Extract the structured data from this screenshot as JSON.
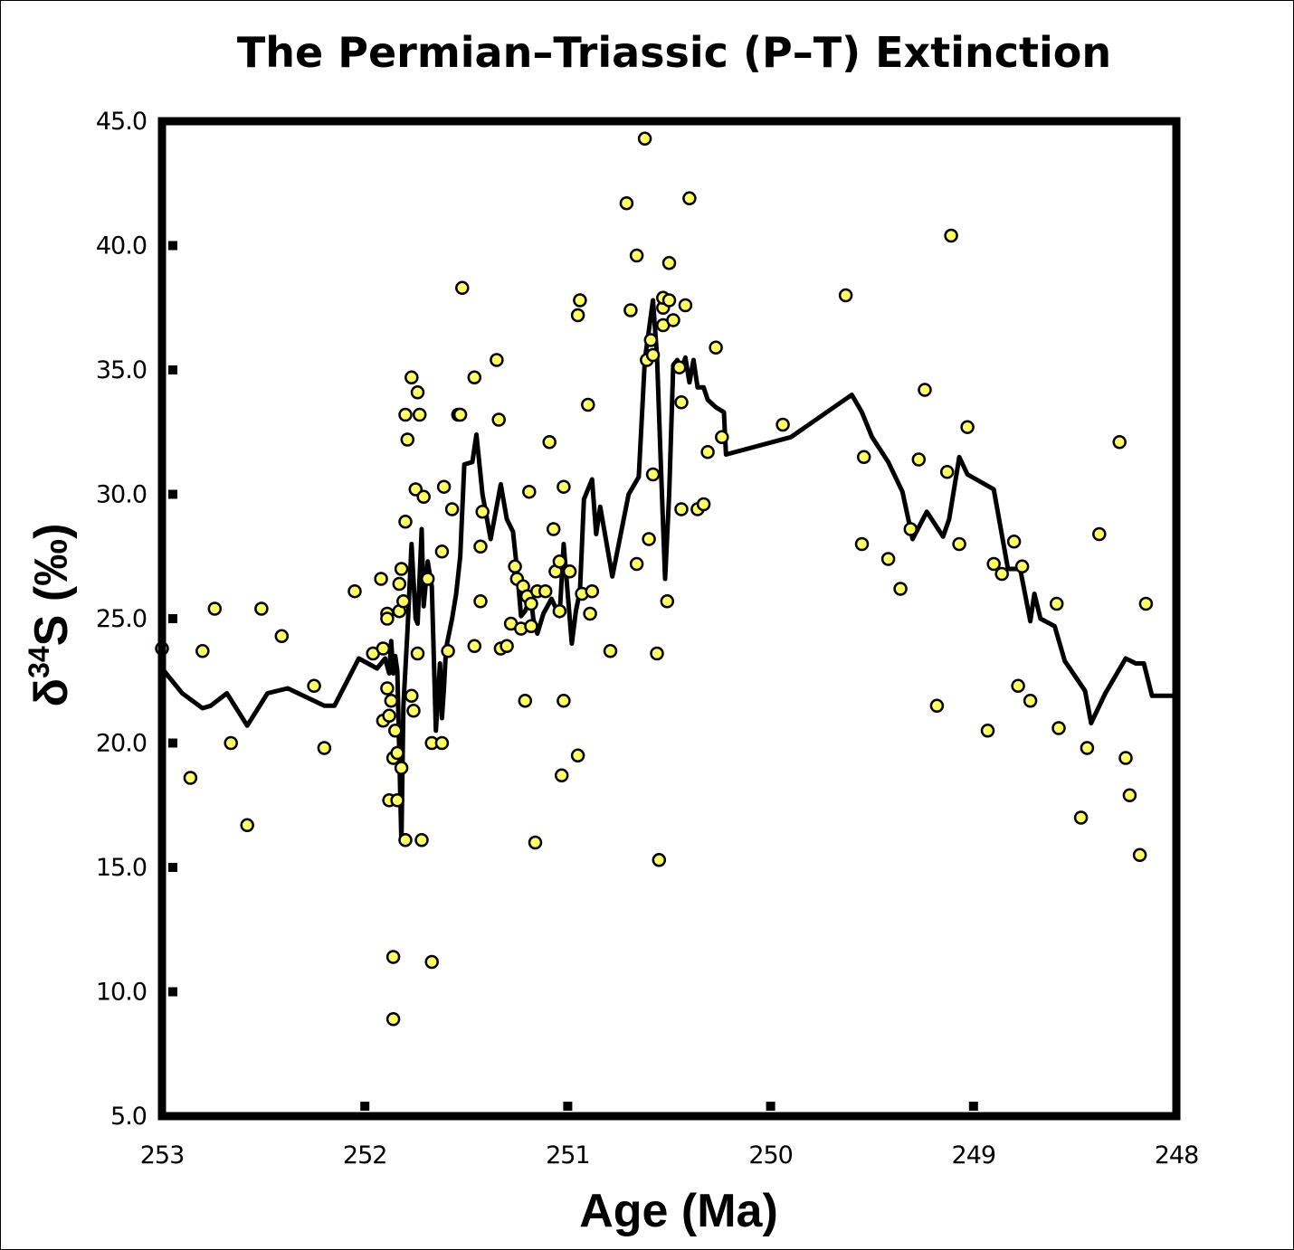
{
  "chart_data": {
    "type": "scatter",
    "title": "The Permian–Triassic (P–T) Extinction",
    "xlabel": "Age (Ma)",
    "ylabel_main": "δ",
    "ylabel_sup": "34",
    "ylabel_rest": "S (‰)",
    "xlim": [
      253,
      248
    ],
    "ylim": [
      5.0,
      45.0
    ],
    "x_ticks": [
      253,
      252,
      251,
      250,
      249,
      248
    ],
    "x_tick_labels": [
      "253",
      "252",
      "251",
      "250",
      "249",
      "248"
    ],
    "y_ticks": [
      5,
      10,
      15,
      20,
      25,
      30,
      35,
      40,
      45
    ],
    "y_tick_labels": [
      "5.0",
      "10.0",
      "15.0",
      "20.0",
      "25.0",
      "30.0",
      "35.0",
      "40.0",
      "45.0"
    ],
    "marker_color": "#ffff66",
    "line_color": "#000000",
    "series": [
      {
        "type": "scatter",
        "points": [
          [
            253.0,
            23.8
          ],
          [
            252.86,
            18.6
          ],
          [
            252.8,
            23.7
          ],
          [
            252.74,
            25.4
          ],
          [
            252.66,
            20.0
          ],
          [
            252.58,
            16.7
          ],
          [
            252.51,
            25.4
          ],
          [
            252.41,
            24.3
          ],
          [
            252.25,
            22.3
          ],
          [
            252.2,
            19.8
          ],
          [
            252.05,
            26.1
          ],
          [
            251.96,
            23.6
          ],
          [
            251.92,
            26.6
          ],
          [
            251.91,
            20.9
          ],
          [
            251.91,
            23.8
          ],
          [
            251.89,
            25.2
          ],
          [
            251.89,
            25.0
          ],
          [
            251.89,
            22.2
          ],
          [
            251.88,
            21.1
          ],
          [
            251.88,
            17.7
          ],
          [
            251.87,
            21.7
          ],
          [
            251.86,
            11.4
          ],
          [
            251.86,
            8.9
          ],
          [
            251.86,
            19.4
          ],
          [
            251.85,
            20.5
          ],
          [
            251.84,
            19.6
          ],
          [
            251.84,
            17.7
          ],
          [
            251.83,
            26.4
          ],
          [
            251.83,
            25.3
          ],
          [
            251.82,
            19.0
          ],
          [
            251.82,
            27.0
          ],
          [
            251.81,
            25.7
          ],
          [
            251.8,
            16.1
          ],
          [
            251.8,
            28.9
          ],
          [
            251.79,
            32.2
          ],
          [
            251.77,
            34.7
          ],
          [
            251.77,
            21.9
          ],
          [
            251.76,
            21.3
          ],
          [
            251.75,
            30.2
          ],
          [
            251.74,
            34.1
          ],
          [
            251.74,
            23.6
          ],
          [
            251.73,
            33.2
          ],
          [
            251.72,
            16.1
          ],
          [
            251.71,
            29.9
          ],
          [
            251.8,
            33.2
          ],
          [
            251.69,
            26.6
          ],
          [
            251.67,
            11.2
          ],
          [
            251.67,
            20.0
          ],
          [
            251.62,
            27.7
          ],
          [
            251.62,
            20.0
          ],
          [
            251.61,
            30.3
          ],
          [
            251.59,
            23.7
          ],
          [
            251.57,
            29.4
          ],
          [
            251.54,
            33.2
          ],
          [
            251.53,
            33.2
          ],
          [
            251.52,
            38.3
          ],
          [
            251.46,
            23.9
          ],
          [
            251.46,
            34.7
          ],
          [
            251.43,
            27.9
          ],
          [
            251.43,
            25.7
          ],
          [
            251.42,
            29.3
          ],
          [
            251.35,
            35.4
          ],
          [
            251.34,
            33.0
          ],
          [
            251.33,
            23.8
          ],
          [
            251.3,
            23.9
          ],
          [
            251.28,
            24.8
          ],
          [
            251.26,
            27.1
          ],
          [
            251.25,
            26.6
          ],
          [
            251.23,
            24.6
          ],
          [
            251.22,
            26.3
          ],
          [
            251.21,
            21.7
          ],
          [
            251.2,
            25.9
          ],
          [
            251.19,
            30.1
          ],
          [
            251.18,
            24.7
          ],
          [
            251.18,
            25.6
          ],
          [
            251.16,
            16.0
          ],
          [
            251.15,
            26.1
          ],
          [
            251.11,
            26.1
          ],
          [
            251.09,
            32.1
          ],
          [
            251.07,
            28.6
          ],
          [
            251.06,
            26.9
          ],
          [
            251.04,
            25.3
          ],
          [
            251.04,
            27.3
          ],
          [
            251.03,
            18.7
          ],
          [
            251.02,
            21.7
          ],
          [
            251.02,
            30.3
          ],
          [
            250.99,
            26.9
          ],
          [
            250.95,
            37.2
          ],
          [
            250.95,
            19.5
          ],
          [
            250.94,
            37.8
          ],
          [
            250.93,
            26.0
          ],
          [
            250.9,
            33.6
          ],
          [
            250.89,
            25.2
          ],
          [
            250.88,
            26.1
          ],
          [
            250.79,
            23.7
          ],
          [
            250.71,
            41.7
          ],
          [
            250.69,
            37.4
          ],
          [
            250.66,
            39.6
          ],
          [
            250.66,
            27.2
          ],
          [
            250.62,
            44.3
          ],
          [
            250.61,
            35.4
          ],
          [
            250.6,
            28.2
          ],
          [
            250.59,
            36.2
          ],
          [
            250.58,
            35.6
          ],
          [
            250.58,
            30.8
          ],
          [
            250.56,
            23.6
          ],
          [
            250.55,
            15.3
          ],
          [
            250.53,
            37.5
          ],
          [
            250.53,
            36.8
          ],
          [
            250.53,
            37.9
          ],
          [
            250.51,
            25.7
          ],
          [
            250.5,
            37.8
          ],
          [
            250.5,
            39.3
          ],
          [
            250.48,
            37.0
          ],
          [
            250.45,
            35.1
          ],
          [
            250.44,
            33.7
          ],
          [
            250.44,
            29.4
          ],
          [
            250.42,
            37.6
          ],
          [
            250.4,
            41.9
          ],
          [
            250.36,
            29.4
          ],
          [
            250.33,
            29.6
          ],
          [
            250.31,
            31.7
          ],
          [
            250.27,
            35.9
          ],
          [
            250.24,
            32.3
          ],
          [
            249.94,
            32.8
          ],
          [
            249.63,
            38.0
          ],
          [
            249.55,
            28.0
          ],
          [
            249.54,
            31.5
          ],
          [
            249.42,
            27.4
          ],
          [
            249.36,
            26.2
          ],
          [
            249.31,
            28.6
          ],
          [
            249.27,
            31.4
          ],
          [
            249.24,
            34.2
          ],
          [
            249.18,
            21.5
          ],
          [
            249.13,
            30.9
          ],
          [
            249.11,
            40.4
          ],
          [
            249.07,
            28.0
          ],
          [
            249.03,
            32.7
          ],
          [
            248.93,
            20.5
          ],
          [
            248.9,
            27.2
          ],
          [
            248.86,
            26.8
          ],
          [
            248.8,
            28.1
          ],
          [
            248.78,
            22.3
          ],
          [
            248.76,
            27.1
          ],
          [
            248.72,
            21.7
          ],
          [
            248.59,
            25.6
          ],
          [
            248.58,
            20.6
          ],
          [
            248.47,
            17.0
          ],
          [
            248.44,
            19.8
          ],
          [
            248.38,
            28.4
          ],
          [
            248.28,
            32.1
          ],
          [
            248.25,
            19.4
          ],
          [
            248.23,
            17.9
          ],
          [
            248.18,
            15.5
          ],
          [
            248.15,
            25.6
          ]
        ]
      },
      {
        "type": "line",
        "points": [
          [
            253.0,
            23.0
          ],
          [
            252.9,
            22.0
          ],
          [
            252.8,
            21.4
          ],
          [
            252.76,
            21.5
          ],
          [
            252.68,
            22.0
          ],
          [
            252.58,
            20.7
          ],
          [
            252.48,
            22.0
          ],
          [
            252.38,
            22.2
          ],
          [
            252.2,
            21.5
          ],
          [
            252.15,
            21.5
          ],
          [
            252.03,
            23.4
          ],
          [
            251.94,
            23.0
          ],
          [
            251.9,
            23.4
          ],
          [
            251.88,
            22.8
          ],
          [
            251.87,
            24.1
          ],
          [
            251.86,
            22.8
          ],
          [
            251.85,
            23.5
          ],
          [
            251.84,
            22.9
          ],
          [
            251.83,
            19.5
          ],
          [
            251.82,
            16.0
          ],
          [
            251.81,
            21.5
          ],
          [
            251.79,
            24.5
          ],
          [
            251.77,
            28.0
          ],
          [
            251.75,
            25.0
          ],
          [
            251.74,
            24.8
          ],
          [
            251.72,
            28.6
          ],
          [
            251.71,
            25.5
          ],
          [
            251.69,
            27.3
          ],
          [
            251.67,
            26.3
          ],
          [
            251.65,
            20.5
          ],
          [
            251.63,
            23.2
          ],
          [
            251.62,
            21.0
          ],
          [
            251.61,
            22.2
          ],
          [
            251.6,
            23.8
          ],
          [
            251.57,
            25.0
          ],
          [
            251.55,
            26.0
          ],
          [
            251.53,
            27.5
          ],
          [
            251.51,
            31.2
          ],
          [
            251.47,
            31.3
          ],
          [
            251.45,
            32.4
          ],
          [
            251.42,
            30.0
          ],
          [
            251.38,
            28.2
          ],
          [
            251.33,
            30.4
          ],
          [
            251.3,
            29.0
          ],
          [
            251.27,
            28.5
          ],
          [
            251.25,
            27.0
          ],
          [
            251.23,
            25.1
          ],
          [
            251.21,
            25.3
          ],
          [
            251.19,
            25.7
          ],
          [
            251.18,
            25.8
          ],
          [
            251.17,
            25.0
          ],
          [
            251.15,
            24.4
          ],
          [
            251.12,
            25.2
          ],
          [
            251.08,
            25.8
          ],
          [
            251.04,
            25.1
          ],
          [
            251.02,
            28.0
          ],
          [
            251.0,
            26.0
          ],
          [
            250.98,
            24.0
          ],
          [
            250.96,
            25.3
          ],
          [
            250.94,
            26.1
          ],
          [
            250.92,
            29.8
          ],
          [
            250.9,
            30.2
          ],
          [
            250.88,
            30.6
          ],
          [
            250.86,
            28.4
          ],
          [
            250.84,
            29.5
          ],
          [
            250.78,
            26.7
          ],
          [
            250.7,
            30.0
          ],
          [
            250.65,
            30.7
          ],
          [
            250.62,
            35.4
          ],
          [
            250.58,
            37.8
          ],
          [
            250.56,
            35.6
          ],
          [
            250.54,
            31.0
          ],
          [
            250.52,
            26.6
          ],
          [
            250.5,
            30.0
          ],
          [
            250.48,
            35.2
          ],
          [
            250.46,
            35.4
          ],
          [
            250.44,
            35.0
          ],
          [
            250.42,
            35.5
          ],
          [
            250.4,
            34.5
          ],
          [
            250.38,
            35.4
          ],
          [
            250.36,
            34.3
          ],
          [
            250.33,
            34.3
          ],
          [
            250.31,
            33.8
          ],
          [
            250.27,
            33.5
          ],
          [
            250.23,
            33.3
          ],
          [
            250.22,
            31.6
          ],
          [
            249.9,
            32.3
          ],
          [
            249.6,
            34.0
          ],
          [
            249.55,
            33.3
          ],
          [
            249.5,
            32.3
          ],
          [
            249.42,
            31.3
          ],
          [
            249.35,
            30.1
          ],
          [
            249.3,
            28.2
          ],
          [
            249.23,
            29.3
          ],
          [
            249.15,
            28.3
          ],
          [
            249.12,
            29.0
          ],
          [
            249.07,
            31.5
          ],
          [
            249.03,
            30.8
          ],
          [
            248.9,
            30.2
          ],
          [
            248.83,
            27.0
          ],
          [
            248.77,
            27.0
          ],
          [
            248.72,
            24.9
          ],
          [
            248.7,
            26.0
          ],
          [
            248.67,
            25.0
          ],
          [
            248.6,
            24.7
          ],
          [
            248.55,
            23.3
          ],
          [
            248.45,
            22.1
          ],
          [
            248.42,
            20.8
          ],
          [
            248.35,
            22.0
          ],
          [
            248.25,
            23.4
          ],
          [
            248.2,
            23.2
          ],
          [
            248.16,
            23.2
          ],
          [
            248.12,
            21.9
          ],
          [
            248.0,
            21.9
          ]
        ]
      }
    ]
  }
}
